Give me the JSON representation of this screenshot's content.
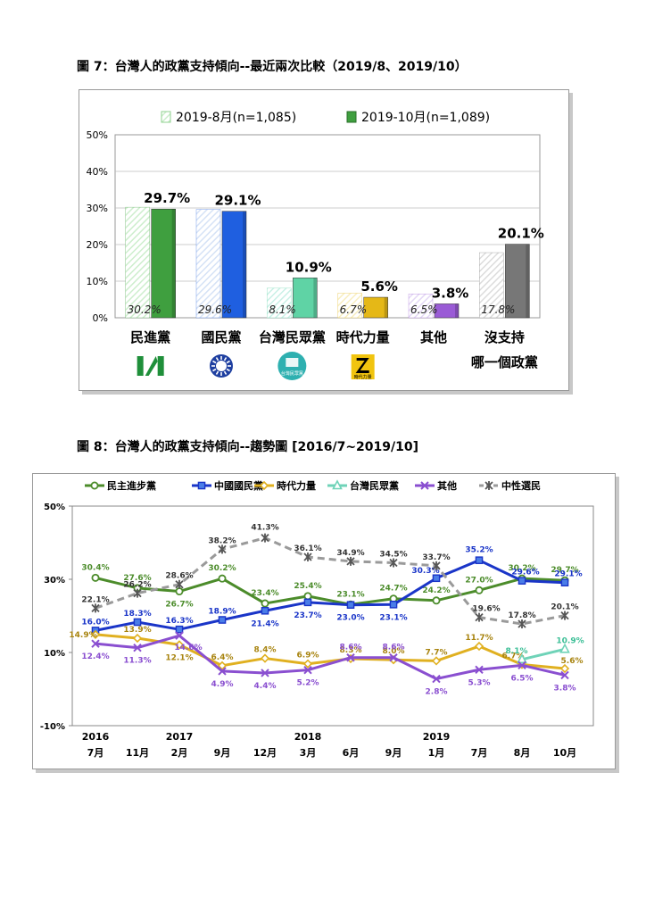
{
  "figure7": {
    "title": "圖 7：台灣人的政黨支持傾向--最近兩次比較（2019/8、2019/10）",
    "chart_data": {
      "type": "bar",
      "categories": [
        "民進黨",
        "國民黨",
        "台灣民眾黨",
        "時代力量",
        "其他",
        "沒支持"
      ],
      "category_line2": [
        "",
        "",
        "",
        "",
        "",
        "哪一個政黨"
      ],
      "series": [
        {
          "name": "2019-8月(n=1,085)",
          "values": [
            30.2,
            29.6,
            8.1,
            6.7,
            6.5,
            17.8
          ],
          "labels": [
            "30.2%",
            "29.6%",
            "8.1%",
            "6.7%",
            "6.5%",
            "17.8%"
          ]
        },
        {
          "name": "2019-10月(n=1,089)",
          "values": [
            29.7,
            29.1,
            10.9,
            5.6,
            3.8,
            20.1
          ],
          "labels": [
            "29.7%",
            "29.1%",
            "10.9%",
            "5.6%",
            "3.8%",
            "20.1%"
          ]
        }
      ],
      "ylim": [
        0,
        50
      ],
      "yticks": [
        "0%",
        "10%",
        "20%",
        "30%",
        "40%",
        "50%"
      ],
      "colors_aug": [
        "#cdeecd",
        "#d5e2f6",
        "#c9f0e6",
        "#f8eec0",
        "#e4d8f5",
        "#dcdcdc"
      ],
      "colors_oct": [
        "#3f9f3f",
        "#1f5fe0",
        "#5fd3a5",
        "#e5b817",
        "#9a5bd6",
        "#777777"
      ],
      "grid": true,
      "legend": "top-center"
    },
    "logos": [
      {
        "name": "dpp-logo-icon",
        "color": "#1f8f3a"
      },
      {
        "name": "kmt-logo-icon",
        "color": "#1e3fa0"
      },
      {
        "name": "tpp-logo-icon",
        "color": "#2eb0b0",
        "text": "台灣民眾黨"
      },
      {
        "name": "npp-logo-icon",
        "color": "#f1c40f",
        "text": "時代力量"
      }
    ]
  },
  "figure8": {
    "title": "圖 8：台灣人的政黨支持傾向--趨勢圖 [2016/7~2019/10]",
    "chart_data": {
      "type": "line",
      "x": [
        "7月",
        "11月",
        "2月",
        "9月",
        "12月",
        "3月",
        "6月",
        "9月",
        "1月",
        "7月",
        "8月",
        "10月"
      ],
      "year_labels": [
        "2016",
        "",
        "2017",
        "",
        "",
        "2018",
        "",
        "",
        "2019",
        "",
        "",
        ""
      ],
      "ylim": [
        -10,
        50
      ],
      "yticks": [
        "-10%",
        "10%",
        "30%",
        "50%"
      ],
      "ytick_values": [
        -10,
        10,
        30,
        50
      ],
      "legend": "top",
      "grid": false,
      "series": [
        {
          "name": "民主進步黨",
          "color": "#4c8c2b",
          "marker": "circle",
          "dash": false,
          "values": [
            30.4,
            27.6,
            26.7,
            30.2,
            23.4,
            25.4,
            23.1,
            24.7,
            24.2,
            27.0,
            30.2,
            29.7
          ],
          "labels": [
            "30.4%",
            "27.6%",
            "26.7%",
            "30.2%",
            "23.4%",
            "25.4%",
            "23.1%",
            "24.7%",
            "24.2%",
            "27.0%",
            "30.2%",
            "29.7%"
          ]
        },
        {
          "name": "中國國民黨",
          "color": "#1a35c8",
          "marker": "square",
          "dash": false,
          "values": [
            16.0,
            18.3,
            16.3,
            18.9,
            21.4,
            23.7,
            23.0,
            23.1,
            30.3,
            35.2,
            29.6,
            29.1
          ],
          "labels": [
            "16.0%",
            "18.3%",
            "16.3%",
            "18.9%",
            "21.4%",
            "23.7%",
            "23.0%",
            "23.1%",
            "30.3%",
            "35.2%",
            "29.6%",
            "29.1%"
          ]
        },
        {
          "name": "時代力量",
          "color": "#e0b020",
          "marker": "diamond",
          "dash": false,
          "values": [
            14.9,
            13.9,
            12.1,
            6.4,
            8.4,
            6.9,
            8.3,
            8.0,
            7.7,
            11.7,
            6.7,
            5.6
          ],
          "labels": [
            "14.9%",
            "13.9%",
            "12.1%",
            "6.4%",
            "8.4%",
            "6.9%",
            "8.3%",
            "8.0%",
            "7.7%",
            "11.7%",
            "6.7%",
            "5.6%"
          ]
        },
        {
          "name": "台灣民眾黨",
          "color": "#6fd3b8",
          "marker": "triangle",
          "dash": false,
          "values": [
            null,
            null,
            null,
            null,
            null,
            null,
            null,
            null,
            null,
            null,
            8.1,
            10.9
          ],
          "labels": [
            "",
            "",
            "",
            "",
            "",
            "",
            "",
            "",
            "",
            "",
            "8.1%",
            "10.9%"
          ]
        },
        {
          "name": "其他",
          "color": "#8a4fd0",
          "marker": "x",
          "dash": false,
          "values": [
            12.4,
            11.3,
            14.6,
            4.9,
            4.4,
            5.2,
            8.6,
            8.6,
            2.8,
            5.3,
            6.5,
            3.8
          ],
          "labels": [
            "12.4%",
            "11.3%",
            "14.6%",
            "4.9%",
            "4.4%",
            "5.2%",
            "8.6%",
            "8.6%",
            "2.8%",
            "5.3%",
            "6.5%",
            "3.8%"
          ]
        },
        {
          "name": "中性選民",
          "color": "#9a9a9a",
          "marker": "star",
          "dash": true,
          "values": [
            22.1,
            26.2,
            28.6,
            38.2,
            41.3,
            36.1,
            34.9,
            34.5,
            33.7,
            19.6,
            17.8,
            20.1
          ],
          "labels": [
            "22.1%",
            "26.2%",
            "28.6%",
            "38.2%",
            "41.3%",
            "36.1%",
            "34.9%",
            "34.5%",
            "33.7%",
            "19.6%",
            "17.8%",
            "20.1%"
          ]
        }
      ]
    }
  }
}
